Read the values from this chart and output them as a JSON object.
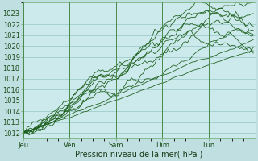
{
  "bg_color": "#c0dfe0",
  "plot_bg_color": "#cceaeb",
  "grid_major_color": "#8abcbd",
  "grid_minor_color": "#a8d4d5",
  "line_color": "#1a5c1a",
  "x_labels": [
    "Jeu",
    "Ven",
    "Sam",
    "Dim",
    "Lun"
  ],
  "xlabel": "Pression niveau de la mer( hPa )",
  "y_min": 1011.5,
  "y_max": 1024.0,
  "y_ticks": [
    1012,
    1013,
    1014,
    1015,
    1016,
    1017,
    1018,
    1019,
    1020,
    1021,
    1022,
    1023
  ],
  "n_points": 120,
  "x_day_positions": [
    0,
    24,
    48,
    72,
    96
  ],
  "x_max": 120,
  "xlabel_fontsize": 7,
  "tick_fontsize": 6,
  "line_width": 0.6
}
